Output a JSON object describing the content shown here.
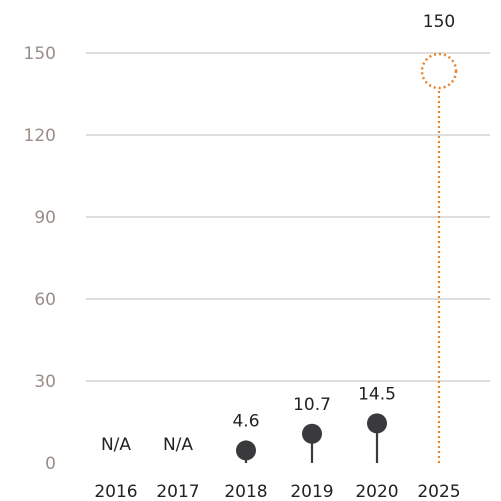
{
  "chart_data": {
    "type": "lollipop",
    "title": "",
    "xlabel": "",
    "ylabel": "",
    "ylim": [
      0,
      150
    ],
    "yticks": [
      "0",
      "30",
      "60",
      "90",
      "120",
      "150"
    ],
    "grid": true,
    "categories": [
      "2016",
      "2017",
      "2018",
      "2019",
      "2020",
      "2025"
    ],
    "values": [
      null,
      null,
      4.6,
      10.7,
      14.5,
      150
    ],
    "data_labels": [
      "N/A",
      "N/A",
      "4.6",
      "10.7",
      "14.5",
      "150"
    ],
    "target_category": "2025",
    "colors": {
      "actual": "#3a3a3c",
      "target": "#e8832b",
      "grid": "#bdbdbd",
      "ytick_text": "#9a8e86"
    }
  }
}
